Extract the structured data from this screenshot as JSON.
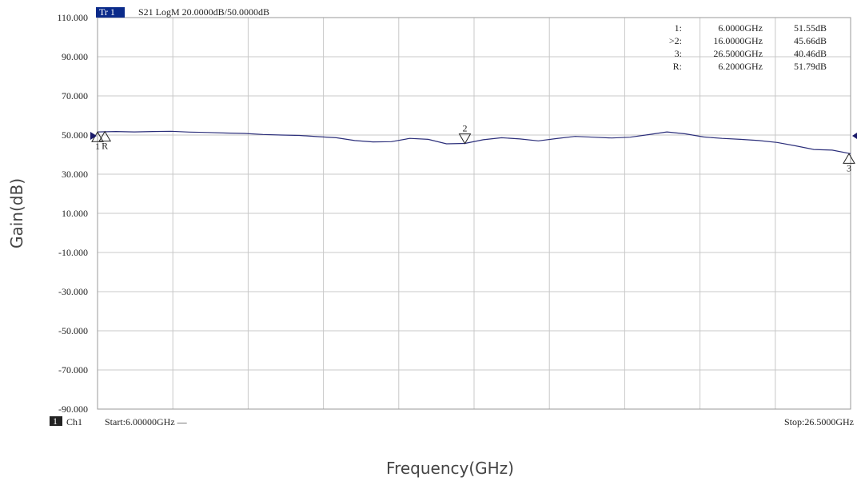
{
  "trace_tag": "Tr 1",
  "trace_info": "S21 LogM 20.0000dB/50.0000dB",
  "channel_box": "1",
  "channel_label": "Ch1",
  "start_label": "Start:6.00000GHz —",
  "stop_label": "Stop:26.5000GHz",
  "marker_table": [
    {
      "id": "1:",
      "freq": "6.0000GHz",
      "value": "51.55dB"
    },
    {
      "id": ">2:",
      "freq": "16.0000GHz",
      "value": "45.66dB"
    },
    {
      "id": "3:",
      "freq": "26.5000GHz",
      "value": "40.46dB"
    },
    {
      "id": "R:",
      "freq": "6.2000GHz",
      "value": "51.79dB"
    }
  ],
  "colors": {
    "trace": "#2b2e7a",
    "tag_bg": "#0a2a8a",
    "arrow": "#1a1a6a"
  },
  "chart_data": {
    "type": "line",
    "xlabel": "Frequency(GHz)",
    "ylabel": "Gain(dB)",
    "xlim": [
      6.0,
      26.5
    ],
    "ylim": [
      -90,
      110
    ],
    "y_ticks": [
      "110.000",
      "90.000",
      "70.000",
      "50.000",
      "30.000",
      "10.000",
      "-10.000",
      "-30.000",
      "-50.000",
      "-70.000",
      "-90.000"
    ],
    "y_tick_values": [
      110,
      90,
      70,
      50,
      30,
      10,
      -10,
      -30,
      -50,
      -70,
      -90
    ],
    "grid": true,
    "series": [
      {
        "x": [
          6.0,
          6.5,
          7.0,
          7.5,
          8.0,
          8.5,
          9.0,
          9.5,
          10.0,
          10.5,
          11.0,
          11.5,
          12.0,
          12.5,
          13.0,
          13.5,
          14.0,
          14.5,
          15.0,
          15.5,
          16.0,
          16.5,
          17.0,
          17.5,
          18.0,
          18.5,
          19.0,
          19.5,
          20.0,
          20.5,
          21.0,
          21.5,
          22.0,
          22.5,
          23.0,
          23.5,
          24.0,
          24.5,
          25.0,
          25.5,
          26.0,
          26.5
        ],
        "y": [
          51.6,
          51.8,
          51.6,
          51.8,
          51.9,
          51.5,
          51.3,
          51.0,
          50.8,
          50.3,
          50.0,
          49.8,
          49.2,
          48.6,
          47.2,
          46.5,
          46.6,
          48.3,
          47.8,
          45.5,
          45.7,
          47.6,
          48.6,
          48.0,
          47.0,
          48.2,
          49.3,
          48.9,
          48.5,
          48.9,
          50.2,
          51.6,
          50.6,
          49.0,
          48.3,
          47.8,
          47.2,
          46.2,
          44.5,
          42.6,
          42.3,
          40.5
        ]
      }
    ],
    "markers": [
      {
        "label": "1",
        "x": 6.0,
        "y": 51.55,
        "direction": "up"
      },
      {
        "label": "R",
        "x": 6.2,
        "y": 51.79,
        "direction": "up"
      },
      {
        "label": "2",
        "x": 16.0,
        "y": 45.66,
        "direction": "down"
      },
      {
        "label": "3",
        "x": 26.5,
        "y": 40.46,
        "direction": "up"
      }
    ]
  }
}
